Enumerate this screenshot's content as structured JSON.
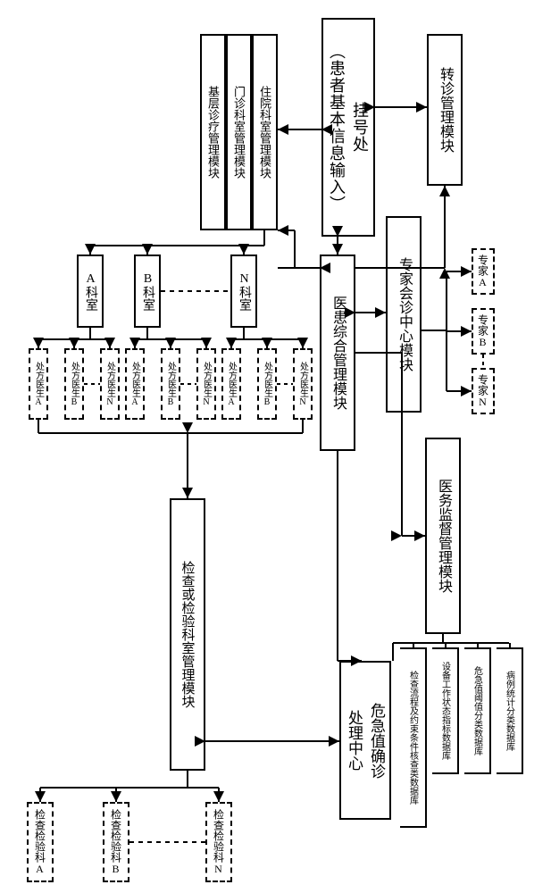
{
  "nodes": {
    "registration": "挂号处\n（患者基本信息输入）",
    "referral": "转诊管理模块",
    "expert_center": "专家会诊中心模块",
    "expert_a": "专家A",
    "expert_b": "专家B",
    "expert_n": "专家N",
    "supervision": "医务监督管理模块",
    "integrated": "医患综合管理模块",
    "basic_treat": "基层诊疗管理模块",
    "outpatient": "门诊科室管理模块",
    "inpatient": "住院科室管理模块",
    "dept_a": "A科室",
    "dept_b": "B科室",
    "dept_n": "N科室",
    "doc_a": "处方医生A",
    "doc_b": "处方医生B",
    "doc_n": "处方医生N",
    "critical_center": "危急值确诊\n处理中心",
    "db1": "检查流程及约束条件核查类数据库",
    "db2": "设备工作状态指标数据库",
    "db3": "危急值阈值分类数据库",
    "db4": "病例统计分类数据库",
    "exam_mgmt": "检查或检验科室管理模块",
    "exam_a": "检查检验科A",
    "exam_b": "检查检验科B",
    "exam_n": "检查检验科N"
  },
  "style": {
    "border_color": "#000000",
    "border_width": 2,
    "font_size_large": 18,
    "font_size_med": 14,
    "font_size_small": 11,
    "bg": "#ffffff"
  }
}
